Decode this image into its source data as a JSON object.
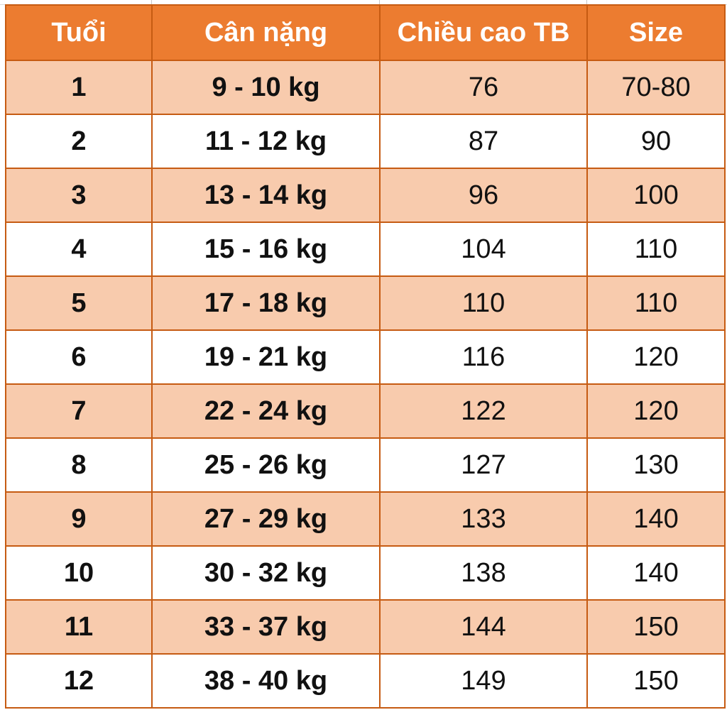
{
  "colors": {
    "header": "#ec7c30",
    "band": "#f8cbad",
    "border": "#c65b12"
  },
  "table": {
    "headers": [
      "Tuổi",
      "Cân nặng",
      "Chiều cao TB",
      "Size"
    ],
    "rows": [
      [
        "1",
        "9 - 10 kg",
        "76",
        "70-80"
      ],
      [
        "2",
        "11 - 12 kg",
        "87",
        "90"
      ],
      [
        "3",
        "13 - 14 kg",
        "96",
        "100"
      ],
      [
        "4",
        "15 - 16 kg",
        "104",
        "110"
      ],
      [
        "5",
        "17 - 18 kg",
        "110",
        "110"
      ],
      [
        "6",
        "19 - 21 kg",
        "116",
        "120"
      ],
      [
        "7",
        "22 - 24 kg",
        "122",
        "120"
      ],
      [
        "8",
        "25 - 26 kg",
        "127",
        "130"
      ],
      [
        "9",
        "27 - 29 kg",
        "133",
        "140"
      ],
      [
        "10",
        "30 - 32 kg",
        "138",
        "140"
      ],
      [
        "11",
        "33 - 37 kg",
        "144",
        "150"
      ],
      [
        "12",
        "38 - 40 kg",
        "149",
        "150"
      ]
    ]
  }
}
